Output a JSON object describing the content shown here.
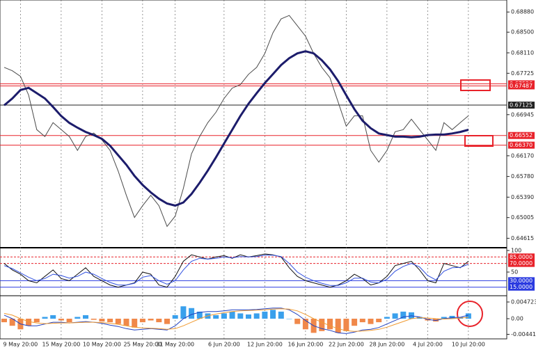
{
  "chart_data": [
    {
      "type": "line",
      "categories": [
        null,
        null,
        "9 May 20:00",
        null,
        null,
        null,
        null,
        "15 May 20:00",
        null,
        null,
        null,
        null,
        "10 May 20:00",
        null,
        null,
        null,
        null,
        "25 May 20:00",
        null,
        null,
        null,
        "31 May 20:00",
        null,
        null,
        null,
        null,
        null,
        "6 Jun 20:00",
        null,
        null,
        null,
        null,
        "12 Jun 20:00",
        null,
        null,
        null,
        null,
        "16 Jun 20:00",
        null,
        null,
        null,
        null,
        "22 Jun 20:00",
        null,
        null,
        null,
        null,
        "28 Jun 20:00",
        null,
        null,
        null,
        null,
        "4 Jul 20:00",
        null,
        null,
        null,
        null,
        "10 Jul 20:00"
      ],
      "series": [
        {
          "color": "#4a4a4a",
          "values": [
            0.67837,
            0.67772,
            0.67667,
            0.67315,
            0.66663,
            0.66533,
            0.66794,
            0.66663,
            0.66533,
            0.66272,
            0.66533,
            0.66598,
            0.66468,
            0.66272,
            0.65881,
            0.65424,
            0.65007,
            0.65229,
            0.65424,
            0.65229,
            0.64838,
            0.65033,
            0.65555,
            0.66207,
            0.66533,
            0.66794,
            0.66989,
            0.6725,
            0.67446,
            0.67511,
            0.67706,
            0.67837,
            0.68098,
            0.68489,
            0.6875,
            0.68815,
            0.68619,
            0.68424,
            0.68098,
            0.67837,
            0.67641,
            0.67185,
            0.66728,
            0.66924,
            0.66924,
            0.66272,
            0.6605,
            0.66272,
            0.66624,
            0.66663,
            0.66859,
            0.66663,
            0.66468,
            0.66272,
            0.66794,
            0.66663,
            0.66794,
            0.66924
          ]
        },
        {
          "color": "#1c1c6b",
          "values": [
            0.6712,
            0.6725,
            0.6741,
            0.6745,
            0.6735,
            0.6725,
            0.6709,
            0.6692,
            0.6679,
            0.667,
            0.6662,
            0.6656,
            0.6649,
            0.6636,
            0.6618,
            0.66,
            0.6579,
            0.6562,
            0.6548,
            0.6536,
            0.6527,
            0.6523,
            0.6529,
            0.6545,
            0.6566,
            0.6589,
            0.6614,
            0.664,
            0.6666,
            0.6692,
            0.6715,
            0.6735,
            0.6754,
            0.6771,
            0.6788,
            0.6801,
            0.681,
            0.6814,
            0.681,
            0.6797,
            0.678,
            0.6758,
            0.6731,
            0.6705,
            0.6683,
            0.6669,
            0.6659,
            0.6656,
            0.6653,
            0.6653,
            0.6652,
            0.6653,
            0.6656,
            0.6657,
            0.6657,
            0.6659,
            0.6662,
            0.6666
          ]
        }
      ],
      "ylim": [
        0.6445,
        0.6908
      ],
      "yticks": [
        {
          "value": 0.6888,
          "label": "0.68880"
        },
        {
          "value": 0.685,
          "label": "0.68500"
        },
        {
          "value": 0.6811,
          "label": "0.68110"
        },
        0.67725,
        0.66945,
        {
          "value": 0.6617,
          "label": "0.66170"
        },
        {
          "value": 0.6578,
          "label": "0.65780"
        },
        {
          "value": 0.6539,
          "label": "0.65390"
        },
        0.65005,
        0.64615
      ],
      "levels": [
        {
          "value": 0.67526,
          "label": "0.67526",
          "color": "#e8222a"
        },
        {
          "value": 0.67487,
          "label": "0.67487",
          "color": "#e8222a"
        },
        {
          "value": 0.67125,
          "label": "0.67125",
          "color": "#222222"
        },
        {
          "value": 0.66552,
          "label": "0.66552",
          "color": "#e8222a"
        },
        {
          "value": 0.6637,
          "label": "0.66370",
          "color": "#e8222a"
        }
      ]
    },
    {
      "type": "line",
      "series": [
        {
          "color": "#111111",
          "values": [
            70,
            55,
            45,
            30,
            25,
            40,
            55,
            35,
            30,
            45,
            60,
            40,
            30,
            20,
            15,
            20,
            25,
            50,
            45,
            20,
            15,
            40,
            75,
            90,
            85,
            80,
            85,
            88,
            82,
            90,
            85,
            88,
            92,
            90,
            85,
            60,
            40,
            30,
            25,
            20,
            15,
            20,
            30,
            45,
            35,
            20,
            25,
            40,
            65,
            70,
            75,
            55,
            30,
            25,
            70,
            65,
            60,
            75
          ]
        },
        {
          "color": "#3050e0",
          "values": [
            65,
            58,
            48,
            38,
            30,
            35,
            45,
            42,
            36,
            40,
            50,
            45,
            35,
            26,
            20,
            20,
            24,
            38,
            42,
            30,
            22,
            30,
            55,
            75,
            82,
            80,
            82,
            85,
            83,
            86,
            85,
            86,
            89,
            89,
            86,
            70,
            50,
            38,
            30,
            24,
            19,
            19,
            25,
            36,
            36,
            27,
            25,
            33,
            52,
            63,
            70,
            62,
            42,
            32,
            52,
            60,
            61,
            68
          ]
        }
      ],
      "ylim": [
        0,
        100
      ],
      "yticks": [
        100,
        50
      ],
      "levels": [
        {
          "value": 85,
          "label": "85.0000",
          "color": "#e8222a"
        },
        {
          "value": 70,
          "label": "70.0000",
          "color": "#e8222a"
        },
        {
          "value": 30,
          "label": "30.0000",
          "color": "#2a3ae0"
        },
        {
          "value": 15,
          "label": "15.0000",
          "color": "#2a3ae0"
        }
      ]
    },
    {
      "type": "bar",
      "values": [
        -0.001,
        -0.002,
        -0.003,
        -0.002,
        -0.001,
        0.0005,
        0.001,
        -0.0005,
        -0.001,
        0.0005,
        0.001,
        -0.0003,
        -0.0008,
        -0.001,
        -0.0015,
        -0.002,
        -0.0025,
        -0.001,
        -0.0005,
        -0.001,
        -0.0015,
        0.001,
        0.0035,
        0.003,
        0.002,
        0.0015,
        0.001,
        0.0015,
        0.002,
        0.0015,
        0.0012,
        0.0015,
        0.002,
        0.0025,
        0.002,
        0.0,
        -0.0015,
        -0.003,
        -0.004,
        -0.0035,
        -0.003,
        -0.004,
        -0.0035,
        -0.002,
        -0.001,
        -0.0015,
        -0.001,
        0.0005,
        0.0015,
        0.002,
        0.0018,
        0.0005,
        -0.0005,
        -0.0008,
        0.0005,
        0.0008,
        0.0005,
        0.0015
      ],
      "positive_color": "#3aa0ec",
      "negative_color": "#f0884a",
      "series": [
        {
          "color": "#2040c0",
          "values": [
            0.001,
            0,
            -0.0015,
            -0.002,
            -0.002,
            -0.0015,
            -0.001,
            -0.001,
            -0.0012,
            -0.001,
            -0.0008,
            -0.001,
            -0.0013,
            -0.0018,
            -0.0022,
            -0.0028,
            -0.0032,
            -0.003,
            -0.0028,
            -0.003,
            -0.0032,
            -0.002,
            0,
            0.0012,
            0.0018,
            0.002,
            0.002,
            0.0022,
            0.0025,
            0.0025,
            0.0025,
            0.0026,
            0.0028,
            0.003,
            0.003,
            0.0025,
            0.0012,
            -0.0005,
            -0.002,
            -0.0028,
            -0.0033,
            -0.004,
            -0.0042,
            -0.0038,
            -0.0032,
            -0.003,
            -0.0025,
            -0.0015,
            -0.0005,
            0.0005,
            0.0008,
            0.0005,
            -0.0002,
            -0.0005,
            0,
            0.0003,
            0.0004,
            0.001
          ]
        },
        {
          "color": "#f09a30",
          "values": [
            0.0015,
            0.001,
            0,
            -0.0008,
            -0.0012,
            -0.0014,
            -0.0013,
            -0.0012,
            -0.0012,
            -0.0011,
            -0.001,
            -0.001,
            -0.0011,
            -0.0013,
            -0.0016,
            -0.002,
            -0.0024,
            -0.0026,
            -0.0027,
            -0.0028,
            -0.003,
            -0.0028,
            -0.002,
            -0.001,
            0,
            0.0008,
            0.0013,
            0.0017,
            0.002,
            0.0022,
            0.0023,
            0.0024,
            0.0025,
            0.0027,
            0.0028,
            0.0027,
            0.0022,
            0.0012,
            0,
            -0.001,
            -0.002,
            -0.0028,
            -0.0034,
            -0.0036,
            -0.0035,
            -0.0033,
            -0.003,
            -0.0024,
            -0.0016,
            -0.0008,
            0,
            0.0003,
            0.0002,
            0,
            -0.0001,
            0,
            0.0002,
            0.0004
          ]
        }
      ],
      "ylim": [
        -0.0057,
        0.0059
      ],
      "yticks": [
        0.004723,
        {
          "value": 0,
          "label": "0.00"
        },
        -0.004415
      ]
    }
  ]
}
